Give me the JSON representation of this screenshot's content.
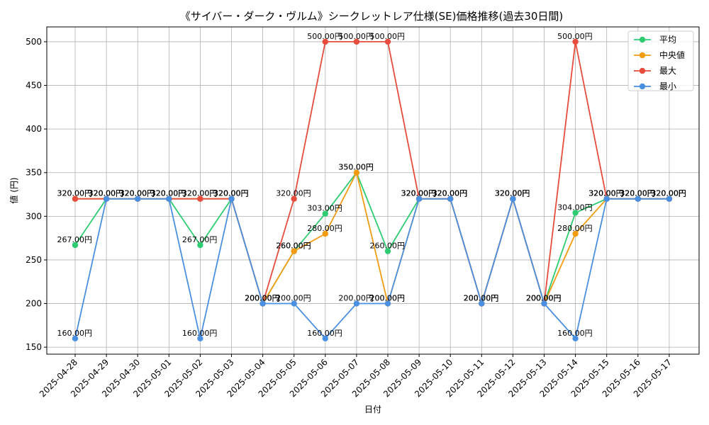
{
  "chart_data": {
    "type": "line",
    "title": "《サイバー・ダーク・ヴルム》シークレットレア仕様(SE)価格推移(過去30日間)",
    "xlabel": "日付",
    "ylabel": "値 (円)",
    "categories": [
      "2025-04-28",
      "2025-04-29",
      "2025-04-30",
      "2025-05-01",
      "2025-05-02",
      "2025-05-03",
      "2025-05-04",
      "2025-05-05",
      "2025-05-06",
      "2025-05-07",
      "2025-05-08",
      "2025-05-09",
      "2025-05-10",
      "2025-05-11",
      "2025-05-12",
      "2025-05-13",
      "2025-05-14",
      "2025-05-15",
      "2025-05-16",
      "2025-05-17"
    ],
    "ylim": [
      142,
      517
    ],
    "yticks": [
      150,
      200,
      250,
      300,
      350,
      400,
      450,
      500
    ],
    "grid": true,
    "legend_position": "top-right",
    "series": [
      {
        "name": "平均",
        "color": "#2ecc71",
        "values": [
          267,
          320,
          320,
          320,
          267,
          320,
          200,
          260,
          303,
          350,
          260,
          320,
          320,
          200,
          320,
          200,
          304,
          320,
          320,
          320
        ],
        "labels": [
          "267.00円",
          "320.00円",
          "320.00円",
          "320.00円",
          "267.00円",
          "320.00円",
          "200.00円",
          "260.00円",
          "303.00円",
          "350.00円",
          "260.00円",
          "320.00円",
          "320.00円",
          "200.00円",
          "320.00円",
          "200.00円",
          "304.00円",
          "320.00円",
          "320.00円",
          "320.00円"
        ]
      },
      {
        "name": "中央値",
        "color": "#f39c12",
        "values": [
          320,
          320,
          320,
          320,
          320,
          320,
          200,
          260,
          280,
          350,
          200,
          320,
          320,
          200,
          320,
          200,
          280,
          320,
          320,
          320
        ],
        "labels": [
          "320.00円",
          "320.00円",
          "320.00円",
          "320.00円",
          "320.00円",
          "320.00円",
          "200.00円",
          "260.00円",
          "280.00円",
          "350.00円",
          "200.00円",
          "320.00円",
          "320.00円",
          "200.00円",
          "320.00円",
          "200.00円",
          "280.00円",
          "320.00円",
          "320.00円",
          "320.00円"
        ]
      },
      {
        "name": "最大",
        "color": "#e74c3c",
        "values": [
          320,
          320,
          320,
          320,
          320,
          320,
          200,
          320,
          500,
          500,
          500,
          320,
          320,
          200,
          320,
          200,
          500,
          320,
          320,
          320
        ],
        "labels": [
          "320.00円",
          "320.00円",
          "320.00円",
          "320.00円",
          "320.00円",
          "320.00円",
          "200.00円",
          "320.00円",
          "500.00円",
          "500.00円",
          "500.00円",
          "320.00円",
          "320.00円",
          "200.00円",
          "320.00円",
          "200.00円",
          "500.00円",
          "320.00円",
          "320.00円",
          "320.00円"
        ]
      },
      {
        "name": "最小",
        "color": "#4a90e2",
        "values": [
          160,
          320,
          320,
          320,
          160,
          320,
          200,
          200,
          160,
          200,
          200,
          320,
          320,
          200,
          320,
          200,
          160,
          320,
          320,
          320
        ],
        "labels": [
          "160.00円",
          "320.00円",
          "320.00円",
          "320.00円",
          "160.00円",
          "320.00円",
          "200.00円",
          "200.00円",
          "160.00円",
          "200.00円",
          "200.00円",
          "320.00円",
          "320.00円",
          "200.00円",
          "320.00円",
          "200.00円",
          "160.00円",
          "320.00円",
          "320.00円",
          "320.00円"
        ]
      }
    ]
  }
}
